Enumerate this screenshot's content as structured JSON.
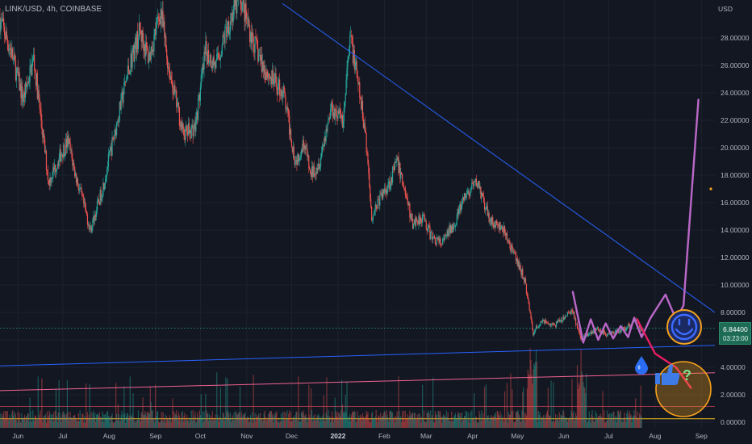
{
  "header": {
    "title": "LINK/USD, 4h, COINBASE",
    "currency": "USD"
  },
  "price_badge": {
    "price": "6.84400",
    "countdown": "03:23:00"
  },
  "colors": {
    "background": "#131722",
    "candle_up": "#26a69a",
    "candle_down": "#ef5350",
    "trendline_blue": "#2962ff",
    "trendline_pink": "#f06292",
    "projection": "#ba68c8",
    "pink_leg": "#e91e63",
    "orange_circle": "#f7a21b",
    "smiley": "#2962ff"
  },
  "icons": [
    "drop-icon",
    "thumbs-up-icon",
    "question-mark-icon",
    "smiley-face-icon"
  ],
  "annotations": {
    "question": "?"
  },
  "chart_data": {
    "type": "candlestick",
    "title": "LINK/USD, 4h, COINBASE",
    "ylabel": "USD",
    "ylim": [
      0,
      30
    ],
    "y_ticks": [
      0,
      2,
      4,
      6,
      8,
      10,
      12,
      14,
      16,
      18,
      20,
      22,
      24,
      26,
      28
    ],
    "y_tick_labels": [
      "0.00000",
      "2.00000",
      "4.00000",
      "6.00000",
      "8.00000",
      "10.00000",
      "12.00000",
      "14.00000",
      "16.00000",
      "18.00000",
      "20.00000",
      "22.00000",
      "24.00000",
      "26.00000",
      "28.00000"
    ],
    "x_labels": [
      "Jun",
      "Jul",
      "Aug",
      "Sep",
      "Oct",
      "Nov",
      "Dec",
      "2022",
      "Feb",
      "Mar",
      "Apr",
      "May",
      "Jun",
      "Jul",
      "Aug",
      "Sep"
    ],
    "x_label_bold": "2022",
    "x_range": [
      "2021-05-20",
      "2022-09-10"
    ],
    "x_label_dates": [
      "2021-06-01",
      "2021-07-01",
      "2021-08-01",
      "2021-09-01",
      "2021-10-01",
      "2021-11-01",
      "2021-12-01",
      "2022-01-01",
      "2022-02-01",
      "2022-03-01",
      "2022-04-01",
      "2022-05-01",
      "2022-06-01",
      "2022-07-01",
      "2022-08-01",
      "2022-09-01"
    ],
    "price_path": [
      [
        "2021-05-20",
        29.5
      ],
      [
        "2021-05-28",
        27.0
      ],
      [
        "2021-06-05",
        23.5
      ],
      [
        "2021-06-12",
        26.5
      ],
      [
        "2021-06-22",
        17.5
      ],
      [
        "2021-06-30",
        19.5
      ],
      [
        "2021-07-05",
        20.5
      ],
      [
        "2021-07-10",
        18.0
      ],
      [
        "2021-07-20",
        14.0
      ],
      [
        "2021-07-28",
        17.0
      ],
      [
        "2021-08-05",
        21.0
      ],
      [
        "2021-08-15",
        26.0
      ],
      [
        "2021-08-22",
        28.5
      ],
      [
        "2021-08-28",
        26.5
      ],
      [
        "2021-09-05",
        30.0
      ],
      [
        "2021-09-10",
        26.0
      ],
      [
        "2021-09-20",
        21.0
      ],
      [
        "2021-09-28",
        21.5
      ],
      [
        "2021-10-05",
        27.0
      ],
      [
        "2021-10-12",
        26.0
      ],
      [
        "2021-10-20",
        29.0
      ],
      [
        "2021-10-28",
        31.0
      ],
      [
        "2021-11-05",
        28.0
      ],
      [
        "2021-11-12",
        26.0
      ],
      [
        "2021-11-18",
        25.0
      ],
      [
        "2021-11-26",
        24.0
      ],
      [
        "2021-12-04",
        19.0
      ],
      [
        "2021-12-10",
        20.5
      ],
      [
        "2021-12-14",
        18.0
      ],
      [
        "2021-12-20",
        19.0
      ],
      [
        "2021-12-28",
        23.0
      ],
      [
        "2022-01-05",
        22.0
      ],
      [
        "2022-01-08",
        26.0
      ],
      [
        "2022-01-10",
        28.0
      ],
      [
        "2022-01-15",
        24.5
      ],
      [
        "2022-01-20",
        21.0
      ],
      [
        "2022-01-24",
        15.0
      ],
      [
        "2022-01-28",
        16.0
      ],
      [
        "2022-02-05",
        17.5
      ],
      [
        "2022-02-10",
        19.0
      ],
      [
        "2022-02-15",
        17.0
      ],
      [
        "2022-02-20",
        14.5
      ],
      [
        "2022-02-27",
        15.0
      ],
      [
        "2022-03-05",
        13.5
      ],
      [
        "2022-03-12",
        13.0
      ],
      [
        "2022-03-20",
        14.5
      ],
      [
        "2022-03-28",
        16.5
      ],
      [
        "2022-04-05",
        17.5
      ],
      [
        "2022-04-10",
        15.5
      ],
      [
        "2022-04-15",
        14.5
      ],
      [
        "2022-04-22",
        14.0
      ],
      [
        "2022-04-30",
        12.0
      ],
      [
        "2022-05-06",
        10.5
      ],
      [
        "2022-05-10",
        8.0
      ],
      [
        "2022-05-12",
        6.5
      ],
      [
        "2022-05-18",
        7.5
      ],
      [
        "2022-05-25",
        7.0
      ],
      [
        "2022-06-01",
        7.5
      ],
      [
        "2022-06-07",
        8.2
      ],
      [
        "2022-06-13",
        6.0
      ],
      [
        "2022-06-18",
        6.5
      ],
      [
        "2022-06-25",
        6.8
      ],
      [
        "2022-07-01",
        6.3
      ],
      [
        "2022-07-08",
        6.6
      ],
      [
        "2022-07-15",
        7.0
      ],
      [
        "2022-07-19",
        7.6
      ],
      [
        "2022-07-23",
        6.844
      ]
    ],
    "series": [
      {
        "name": "",
        "type": "trendline",
        "color": "#2962ff",
        "points": [
          [
            "2021-11-25",
            30.5
          ],
          [
            "2022-09-10",
            8.0
          ]
        ]
      },
      {
        "name": "",
        "type": "trendline",
        "color": "#2962ff",
        "points": [
          [
            "2021-05-20",
            4.1
          ],
          [
            "2022-09-10",
            5.6
          ]
        ]
      },
      {
        "name": "",
        "type": "trendline",
        "color": "#f06292",
        "points": [
          [
            "2021-05-20",
            2.3
          ],
          [
            "2022-09-10",
            3.6
          ]
        ]
      },
      {
        "name": "",
        "type": "projection",
        "color": "#ba68c8",
        "points": [
          [
            "2022-06-07",
            9.5
          ],
          [
            "2022-06-14",
            5.8
          ],
          [
            "2022-06-19",
            7.5
          ],
          [
            "2022-06-24",
            6.0
          ],
          [
            "2022-06-29",
            7.2
          ],
          [
            "2022-07-04",
            6.1
          ],
          [
            "2022-07-09",
            7.0
          ],
          [
            "2022-07-14",
            6.2
          ],
          [
            "2022-07-18",
            7.6
          ],
          [
            "2022-07-23",
            6.2
          ],
          [
            "2022-07-29",
            7.6
          ],
          [
            "2022-08-08",
            9.3
          ],
          [
            "2022-08-15",
            7.5
          ],
          [
            "2022-08-20",
            8.5
          ],
          [
            "2022-08-30",
            23.5
          ]
        ]
      },
      {
        "name": "",
        "type": "projection",
        "color": "#e91e63",
        "points": [
          [
            "2022-07-20",
            7.5
          ],
          [
            "2022-08-01",
            5.0
          ],
          [
            "2022-08-15",
            4.0
          ],
          [
            "2022-08-25",
            2.5
          ]
        ]
      }
    ],
    "current_price": 6.844,
    "price_line_level": 6.844,
    "grid": true,
    "volume_shown": true
  }
}
